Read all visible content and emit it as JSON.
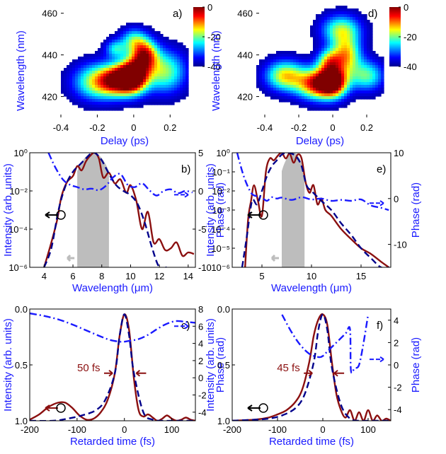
{
  "chart_data": [
    {
      "type": "heatmap",
      "panel": "a)",
      "xlabel": "Delay (ps)",
      "ylabel": "Wavelength (nm)",
      "xlim": [
        -0.4,
        0.3
      ],
      "ylim": [
        410,
        465
      ],
      "xticks": [
        "-0.4",
        "-0.2",
        "0",
        "0.2"
      ],
      "yticks": [
        "420",
        "440",
        "460"
      ],
      "colorbar": {
        "ticks": [
          "0",
          "-20",
          "-40"
        ],
        "range": [
          -40,
          0
        ],
        "colors": [
          "#00008f",
          "#0000ff",
          "#00ffff",
          "#ffff00",
          "#ff0000",
          "#800000"
        ]
      },
      "blobs": [
        {
          "x": 0.0,
          "y": 430,
          "sx": 0.055,
          "sy": 5.5,
          "a": 1.0
        },
        {
          "x": -0.08,
          "y": 428,
          "sx": 0.07,
          "sy": 5,
          "a": 0.8
        },
        {
          "x": 0.06,
          "y": 440,
          "sx": 0.05,
          "sy": 5,
          "a": 0.75
        },
        {
          "x": -0.2,
          "y": 427,
          "sx": 0.09,
          "sy": 6,
          "a": 0.55
        },
        {
          "x": 0.17,
          "y": 432,
          "sx": 0.08,
          "sy": 7,
          "a": 0.5
        },
        {
          "x": 0.0,
          "y": 447,
          "sx": 0.05,
          "sy": 4,
          "a": 0.4
        },
        {
          "x": -0.1,
          "y": 443,
          "sx": 0.04,
          "sy": 3,
          "a": 0.35
        }
      ]
    },
    {
      "type": "heatmap",
      "panel": "d)",
      "xlabel": "Delay (ps)",
      "ylabel": "Wavelength (nm)",
      "xlim": [
        -0.45,
        0.3
      ],
      "ylim": [
        410,
        465
      ],
      "xticks": [
        "-0.4",
        "-0.2",
        "0",
        "0.2"
      ],
      "yticks": [
        "420",
        "440",
        "460"
      ],
      "colorbar": {
        "ticks": [
          "0",
          "-20",
          "-40"
        ],
        "range": [
          -40,
          0
        ],
        "colors": [
          "#00008f",
          "#0000ff",
          "#00ffff",
          "#ffff00",
          "#ff0000",
          "#800000"
        ]
      },
      "blobs": [
        {
          "x": 0.0,
          "y": 427,
          "sx": 0.06,
          "sy": 5,
          "a": 1.0
        },
        {
          "x": -0.1,
          "y": 426,
          "sx": 0.08,
          "sy": 5,
          "a": 0.75
        },
        {
          "x": -0.28,
          "y": 430,
          "sx": 0.08,
          "sy": 5,
          "a": 0.6
        },
        {
          "x": 0.08,
          "y": 440,
          "sx": 0.06,
          "sy": 6,
          "a": 0.6
        },
        {
          "x": 0.05,
          "y": 452,
          "sx": 0.08,
          "sy": 5,
          "a": 0.5
        },
        {
          "x": 0.2,
          "y": 430,
          "sx": 0.07,
          "sy": 5,
          "a": 0.45
        },
        {
          "x": -0.02,
          "y": 437,
          "sx": 0.05,
          "sy": 4,
          "a": 0.5
        }
      ]
    },
    {
      "type": "line",
      "panel": "b)",
      "xlabel": "Wavelength (μm)",
      "ylabel": "Intensity (arb. units)",
      "y2label": "Phase (rad)",
      "xlim": [
        3,
        14.5
      ],
      "ylim": [
        1e-06,
        1
      ],
      "yscale": "log",
      "y2lim": [
        -10,
        5
      ],
      "xticks": [
        "4",
        "6",
        "8",
        "10",
        "12",
        "14"
      ],
      "yticks": [
        "10⁰",
        "10⁻²",
        "10⁻⁴",
        "10⁻⁶"
      ],
      "y2ticks": [
        "5",
        "0",
        "-5",
        "-10"
      ],
      "series": [
        {
          "style": "solid",
          "color": "#8b1010",
          "axis": "left",
          "x": [
            4.0,
            4.5,
            4.9,
            5.2,
            5.6,
            6.0,
            6.3,
            6.6,
            6.9,
            7.2,
            7.5,
            7.8,
            8.1,
            8.5,
            8.9,
            9.3,
            9.7,
            10.0,
            10.4,
            10.8,
            11.2,
            11.6,
            12.0,
            12.4,
            12.8,
            13.2,
            13.6,
            14.0,
            14.4
          ],
          "y": [
            1e-06,
            2e-05,
            0.0003,
            0.005,
            0.03,
            0.06,
            0.2,
            0.12,
            0.35,
            0.7,
            1.0,
            0.5,
            0.05,
            0.09,
            0.025,
            0.04,
            0.008,
            0.02,
            0.003,
            0.0001,
            0.0008,
            2e-05,
            3e-05,
            8e-06,
            1e-05,
            2e-05,
            4e-06,
            6e-06,
            5e-06
          ]
        },
        {
          "style": "dash",
          "color": "#00008b",
          "axis": "left",
          "x": [
            4.0,
            4.5,
            5.0,
            5.5,
            6.0,
            6.5,
            7.0,
            7.3,
            7.6,
            8.0,
            8.5,
            9.0,
            9.5,
            10.0,
            10.5,
            11.0,
            11.5,
            12.0,
            12.5
          ],
          "y": [
            1e-06,
            1e-05,
            0.001,
            0.02,
            0.1,
            0.25,
            0.6,
            1.0,
            0.9,
            0.4,
            0.08,
            0.02,
            0.01,
            0.006,
            0.002,
            0.0002,
            1e-05,
            1e-06,
            1e-06
          ]
        },
        {
          "style": "dashdot",
          "color": "#1a1aff",
          "axis": "right",
          "x": [
            4.3,
            4.8,
            5.3,
            5.8,
            6.3,
            6.8,
            7.3,
            7.8,
            8.3,
            8.8,
            9.3,
            9.8,
            10.3,
            10.8,
            11.3,
            11.8,
            12.3,
            12.8,
            13.3,
            13.8,
            14.3
          ],
          "y": [
            5,
            3,
            1.5,
            0.8,
            0.5,
            0.2,
            0.3,
            0.1,
            0.7,
            1.8,
            2.2,
            0.8,
            0.5,
            1.0,
            0.1,
            -0.6,
            0.0,
            0.2,
            -0.3,
            0.0,
            -0.2
          ]
        }
      ],
      "pump_band": {
        "x": [
          6.3,
          8.5
        ],
        "color": "#bdbdbd"
      }
    },
    {
      "type": "line",
      "panel": "e)",
      "xlabel": "Wavelength (μm)",
      "ylabel": "Intensity (arb. units)",
      "y2label": "Phase (rad)",
      "xlim": [
        2,
        18
      ],
      "ylim": [
        1e-06,
        1
      ],
      "yscale": "log",
      "y2lim": [
        -15,
        10
      ],
      "xticks": [
        "5",
        "10",
        "15"
      ],
      "yticks": [
        "10⁰",
        "10⁻¹",
        "10⁻²",
        "10⁻³",
        "10⁻⁴",
        "10⁻⁵",
        "10⁻⁶"
      ],
      "y2ticks": [
        "10",
        "0",
        "-10"
      ],
      "series": [
        {
          "style": "solid",
          "color": "#8b1010",
          "axis": "left",
          "x": [
            3.3,
            3.6,
            3.9,
            4.2,
            4.6,
            5.0,
            5.4,
            5.8,
            6.2,
            6.6,
            7.0,
            7.4,
            7.8,
            8.2,
            8.6,
            9.0,
            9.4,
            9.8,
            10.2,
            10.6,
            11.0,
            11.4,
            12,
            13,
            14,
            15,
            16,
            17,
            17.8
          ],
          "y": [
            1e-06,
            0.0003,
            0.003,
            0.02,
            0.003,
            0.0005,
            0.1,
            0.5,
            0.4,
            0.7,
            1.0,
            0.5,
            0.9,
            0.3,
            0.8,
            0.5,
            0.03,
            0.008,
            0.02,
            0.002,
            0.004,
            0.001,
            0.0005,
            0.0001,
            3e-05,
            1e-05,
            5e-06,
            2e-06,
            1e-06
          ]
        },
        {
          "style": "dash",
          "color": "#00008b",
          "axis": "left",
          "x": [
            3.0,
            3.5,
            4.0,
            4.5,
            5.0,
            5.5,
            6.0,
            6.5,
            7.0,
            7.5,
            8.0,
            8.5,
            9.0,
            9.5,
            10,
            11,
            12,
            13,
            14,
            15,
            16,
            17,
            17.8
          ],
          "y": [
            1e-06,
            5e-05,
            0.003,
            0.002,
            0.01,
            0.06,
            0.2,
            0.4,
            0.8,
            1.0,
            0.9,
            0.6,
            0.2,
            0.02,
            0.01,
            0.003,
            0.001,
            0.0002,
            5e-05,
            1e-05,
            3e-06,
            1e-06,
            1e-06
          ]
        },
        {
          "style": "dashdot",
          "color": "#1a1aff",
          "axis": "right",
          "x": [
            2.5,
            3.0,
            3.5,
            4.0,
            4.5,
            5.0,
            5.5,
            6.0,
            6.5,
            7.0,
            8.0,
            9.0,
            10,
            11,
            12,
            13,
            14,
            15,
            16,
            17,
            17.8
          ],
          "y": [
            10,
            6,
            3,
            1,
            0.5,
            0.2,
            -0.5,
            0.3,
            0,
            0.2,
            -0.3,
            0.3,
            -0.2,
            0,
            -0.5,
            -0.3,
            -0.5,
            -0.2,
            -1.5,
            -2,
            -2.5
          ]
        }
      ],
      "pump_band": {
        "x": [
          7,
          9.3
        ],
        "color": "#bdbdbd"
      }
    },
    {
      "type": "line",
      "panel": "c)",
      "xlabel": "Retarded time (fs)",
      "ylabel": "Intensity (arb. units)",
      "y2label": "Phase (rad)",
      "xlim": [
        -200,
        150
      ],
      "ylim": [
        0,
        1.05
      ],
      "y2lim": [
        -5,
        8
      ],
      "xticks": [
        "-200",
        "-100",
        "0",
        "100"
      ],
      "yticks": [
        "0.0",
        "0.5",
        "1.0"
      ],
      "y2ticks": [
        "8",
        "6",
        "4",
        "2",
        "0",
        "-2",
        "-4"
      ],
      "annotation": "50 fs",
      "series": [
        {
          "style": "solid",
          "color": "#8b1010",
          "axis": "left",
          "x": [
            -200,
            -180,
            -160,
            -140,
            -125,
            -110,
            -95,
            -80,
            -65,
            -50,
            -35,
            -20,
            -10,
            0,
            10,
            20,
            30,
            40,
            50,
            60,
            70,
            80,
            90,
            100,
            110,
            120,
            130,
            140,
            150
          ],
          "y": [
            0.01,
            0.06,
            0.13,
            0.17,
            0.17,
            0.12,
            0.05,
            0.01,
            0.02,
            0.08,
            0.2,
            0.45,
            0.8,
            1.0,
            0.85,
            0.4,
            0.1,
            0.04,
            0.06,
            0.03,
            0.0,
            0.02,
            0.05,
            0.02,
            0.0,
            0.01,
            0.03,
            0.01,
            0.0
          ]
        },
        {
          "style": "dash",
          "color": "#00008b",
          "axis": "left",
          "x": [
            -200,
            -150,
            -120,
            -90,
            -60,
            -40,
            -20,
            -10,
            0,
            10,
            20,
            40,
            60,
            80,
            100,
            120,
            150
          ],
          "y": [
            0,
            0,
            0.02,
            0.05,
            0.1,
            0.2,
            0.45,
            0.8,
            1.0,
            0.8,
            0.45,
            0.08,
            0.01,
            0,
            0,
            0,
            0
          ]
        },
        {
          "style": "dashdot",
          "color": "#1a1aff",
          "axis": "right",
          "x": [
            -200,
            -170,
            -140,
            -110,
            -80,
            -50,
            -30,
            -10,
            0,
            10,
            30,
            50,
            70,
            90,
            110,
            130,
            150
          ],
          "y": [
            7.5,
            7.2,
            6.8,
            6.2,
            5.5,
            4.8,
            4.4,
            4.2,
            4.2,
            4.3,
            4.5,
            5.0,
            5.7,
            6.3,
            6.6,
            6.5,
            6.4
          ]
        }
      ]
    },
    {
      "type": "line",
      "panel": "f)",
      "xlabel": "Retarded time (fs)",
      "ylabel": "Intensity (arb. units)",
      "y2label": "Phase (rad)",
      "xlim": [
        -200,
        150
      ],
      "ylim": [
        0,
        1.05
      ],
      "y2lim": [
        -5,
        5
      ],
      "xticks": [
        "-200",
        "-100",
        "0",
        "100"
      ],
      "yticks": [
        "0.0",
        "0.5",
        "1.0"
      ],
      "y2ticks": [
        "4",
        "2",
        "0",
        "-2",
        "-4"
      ],
      "annotation": "45 fs",
      "series": [
        {
          "style": "solid",
          "color": "#8b1010",
          "axis": "left",
          "x": [
            -200,
            -150,
            -120,
            -100,
            -80,
            -60,
            -45,
            -30,
            -20,
            -10,
            0,
            10,
            20,
            30,
            40,
            50,
            60,
            70,
            80,
            90,
            100,
            110,
            120,
            130,
            140,
            150
          ],
          "y": [
            0,
            0.01,
            0.03,
            0.06,
            0.1,
            0.18,
            0.3,
            0.55,
            0.8,
            0.95,
            1.0,
            0.9,
            0.55,
            0.25,
            0.1,
            0.03,
            0.1,
            0.0,
            0.08,
            0.0,
            0.1,
            0.0,
            0.05,
            0.0,
            0.02,
            0.0
          ]
        },
        {
          "style": "dash",
          "color": "#00008b",
          "axis": "left",
          "x": [
            -200,
            -150,
            -120,
            -90,
            -60,
            -40,
            -20,
            -10,
            0,
            10,
            20,
            40,
            60,
            80,
            100,
            150
          ],
          "y": [
            0,
            0.01,
            0.02,
            0.05,
            0.12,
            0.25,
            0.55,
            0.85,
            1.0,
            0.85,
            0.5,
            0.15,
            0.02,
            0.0,
            0.0,
            0.0
          ]
        },
        {
          "style": "dashdot",
          "color": "#1a1aff",
          "axis": "right",
          "x": [
            -90,
            -70,
            -50,
            -30,
            -10,
            0,
            10,
            30,
            50,
            60,
            62,
            70,
            80,
            90,
            100
          ],
          "y": [
            4.5,
            3.0,
            1.8,
            1.0,
            0.7,
            0.8,
            1.2,
            2.0,
            2.8,
            3.2,
            -0.5,
            -0.3,
            0.0,
            2.0,
            4.5
          ]
        }
      ]
    }
  ]
}
